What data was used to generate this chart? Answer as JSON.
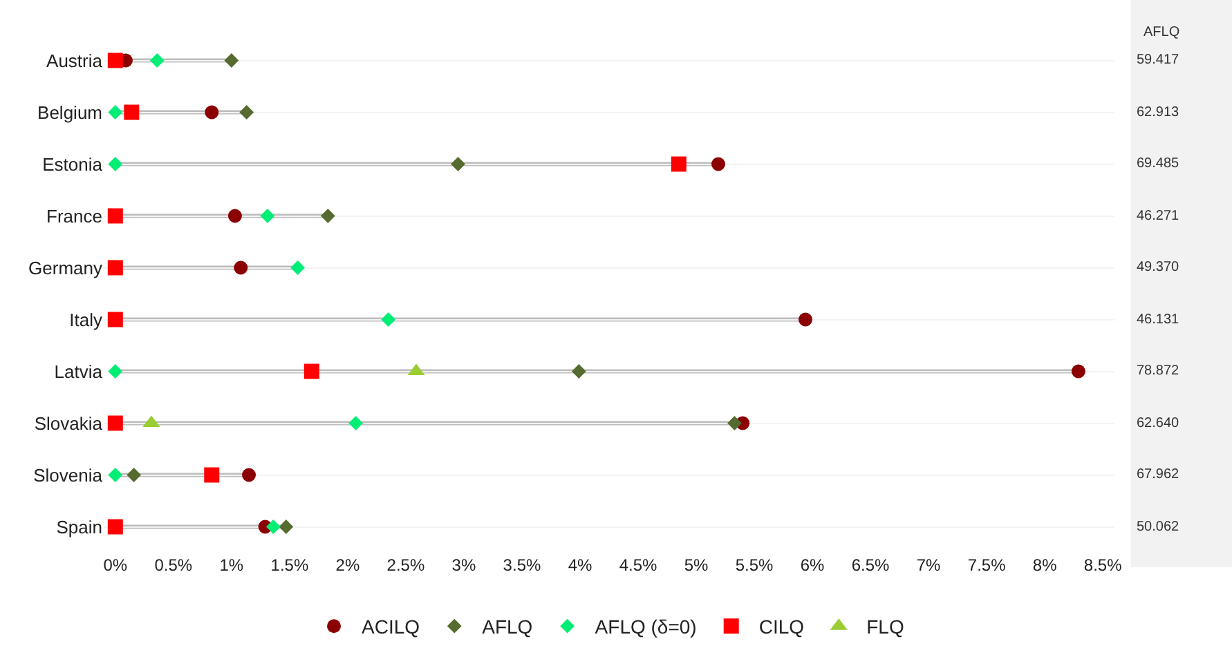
{
  "chart_data": {
    "type": "scatter",
    "orientation": "horizontal",
    "categories": [
      "Austria",
      "Belgium",
      "Estonia",
      "France",
      "Germany",
      "Italy",
      "Latvia",
      "Slovakia",
      "Slovenia",
      "Spain"
    ],
    "series": [
      {
        "name": "ACILQ",
        "color": "#8b0000",
        "marker": "circle",
        "values": [
          0.09,
          0.83,
          5.19,
          1.03,
          1.08,
          5.94,
          8.29,
          5.4,
          1.15,
          1.29
        ]
      },
      {
        "name": "AFLQ",
        "color": "#556b2f",
        "marker": "diamond",
        "values": [
          1.0,
          1.13,
          2.95,
          1.83,
          null,
          null,
          3.99,
          5.33,
          0.16,
          1.47
        ]
      },
      {
        "name": "AFLQ (δ=0)",
        "color": "#00ee76",
        "marker": "diamond",
        "values": [
          0.36,
          0,
          0,
          1.31,
          1.57,
          2.35,
          0,
          2.07,
          0,
          1.36
        ]
      },
      {
        "name": "CILQ",
        "color": "#ff0000",
        "marker": "square",
        "values": [
          0,
          0.14,
          4.85,
          0,
          0,
          0,
          1.69,
          0,
          0.83,
          0
        ]
      },
      {
        "name": "FLQ",
        "color": "#9acd32",
        "marker": "triangle",
        "values": [
          null,
          null,
          null,
          null,
          null,
          null,
          2.59,
          0.31,
          null,
          null
        ]
      }
    ],
    "xlim": [
      -0.1,
      8.6
    ],
    "xticks": [
      {
        "value": 0,
        "label": "0%"
      },
      {
        "value": 0.5,
        "label": "0.5%"
      },
      {
        "value": 1,
        "label": "1%"
      },
      {
        "value": 1.5,
        "label": "1.5%"
      },
      {
        "value": 2,
        "label": "2%"
      },
      {
        "value": 2.5,
        "label": "2.5%"
      },
      {
        "value": 3,
        "label": "3%"
      },
      {
        "value": 3.5,
        "label": "3.5%"
      },
      {
        "value": 4,
        "label": "4%"
      },
      {
        "value": 4.5,
        "label": "4.5%"
      },
      {
        "value": 5,
        "label": "5%"
      },
      {
        "value": 5.5,
        "label": "5.5%"
      },
      {
        "value": 6,
        "label": "6%"
      },
      {
        "value": 6.5,
        "label": "6.5%"
      },
      {
        "value": 7,
        "label": "7%"
      },
      {
        "value": 7.5,
        "label": "7.5%"
      },
      {
        "value": 8,
        "label": "8%"
      },
      {
        "value": 8.5,
        "label": "8.5%"
      }
    ],
    "annotations": [
      "AFLQ",
      "59.417",
      "62.913",
      "69.485",
      "46.271",
      "49.370",
      "46.131",
      "78.872",
      "62.640",
      "67.962",
      "50.062"
    ],
    "grid": "y",
    "legend": "bottom"
  }
}
